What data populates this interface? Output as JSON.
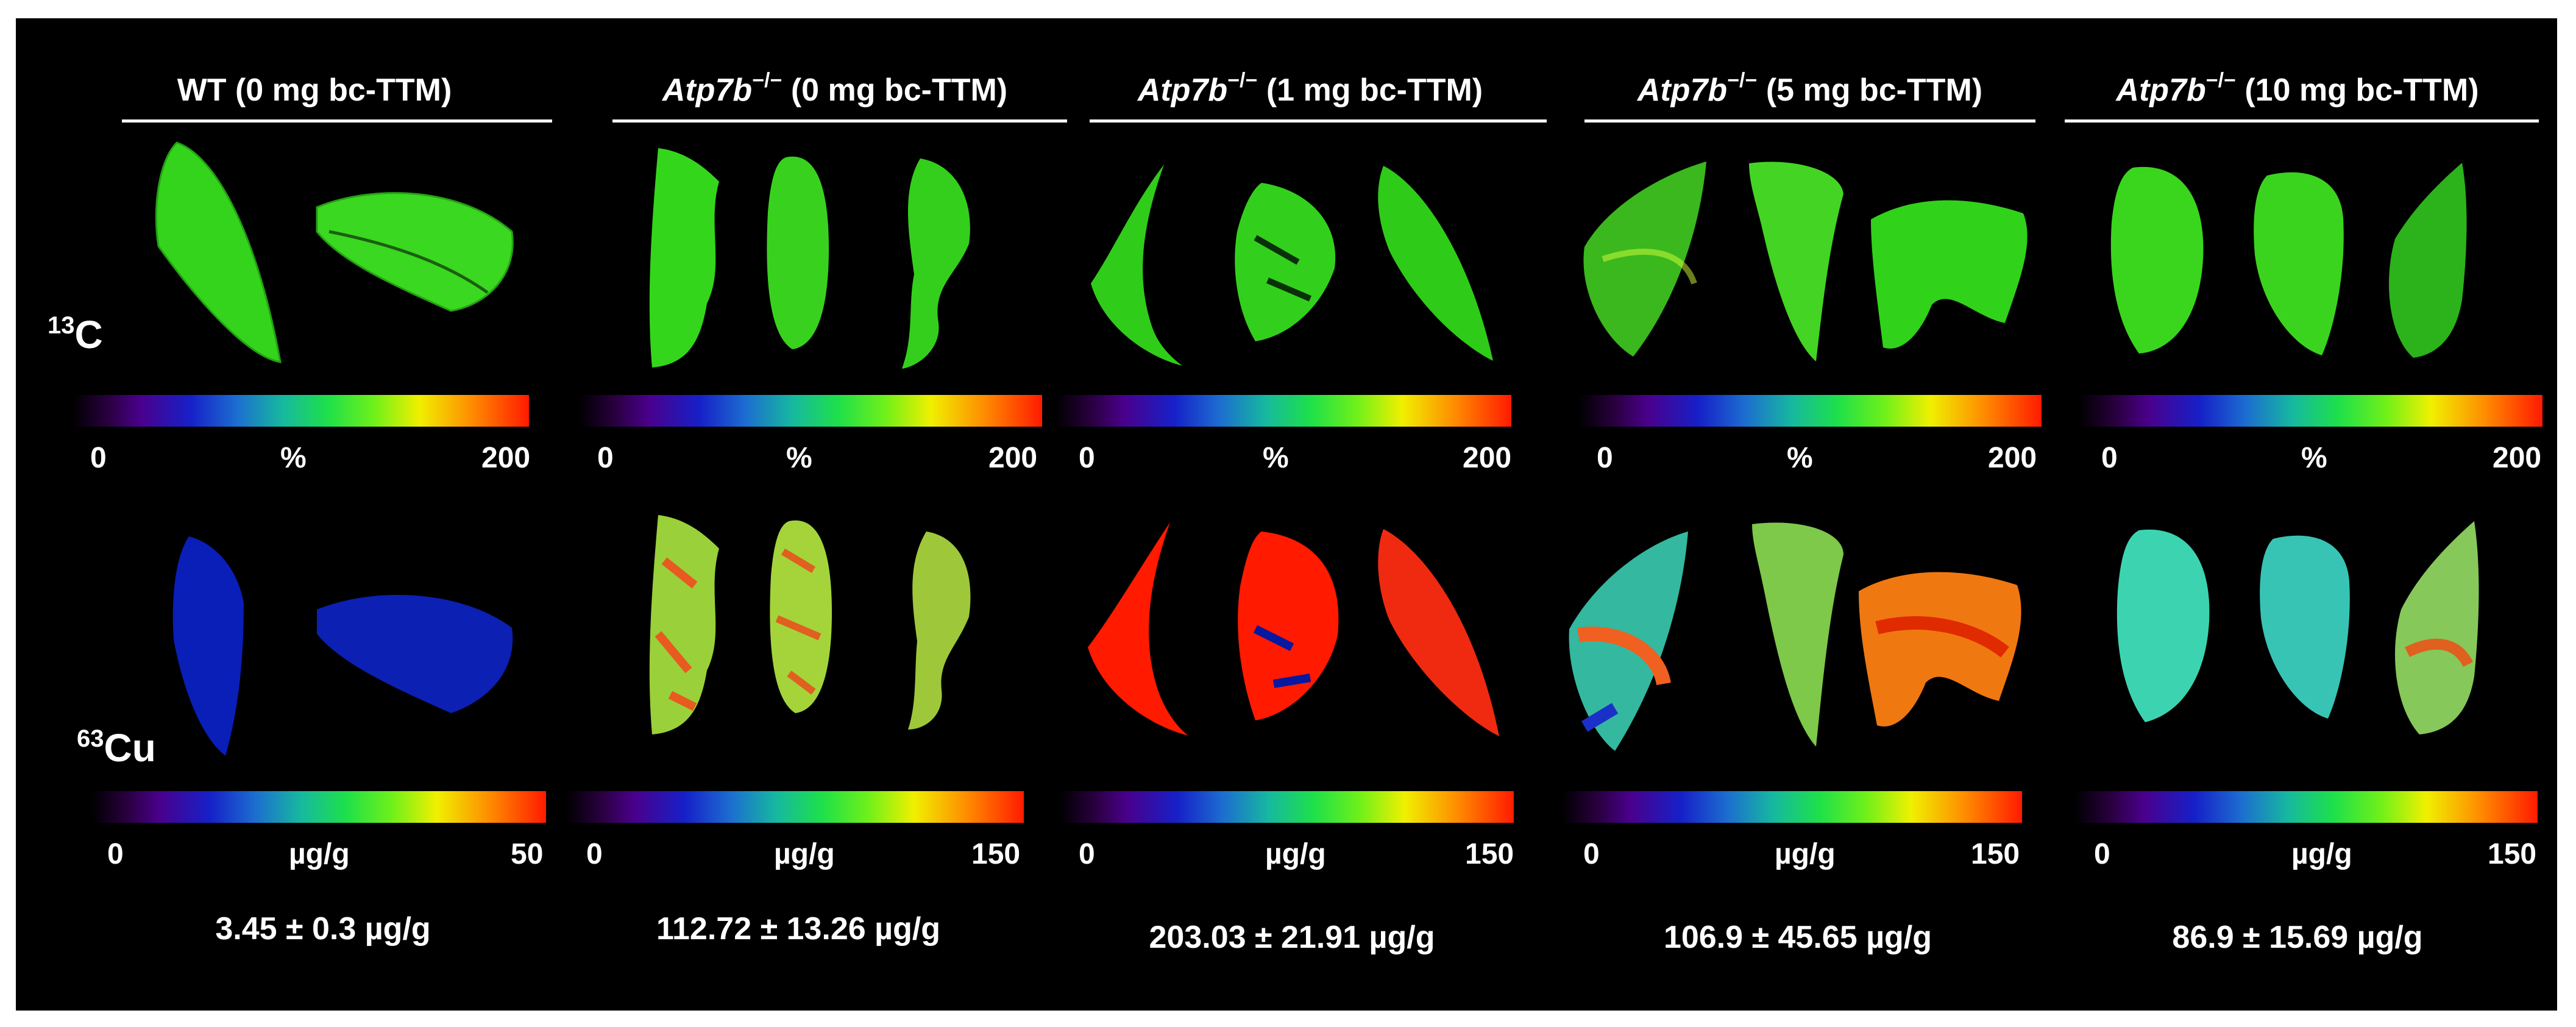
{
  "columns": [
    {
      "title_pre": "WT",
      "title_sup": "",
      "title_post": " (0 mg bc-TTM)",
      "c13_scale": {
        "min": "0",
        "unit": "%",
        "max": "200"
      },
      "cu_scale": {
        "min": "0",
        "unit": "µg/g",
        "max": "50"
      },
      "cu_value": "3.45 ± 0.3 µg/g"
    },
    {
      "title_pre": "Atp7b",
      "title_sup": "−/−",
      "title_post": " (0 mg bc-TTM)",
      "c13_scale": {
        "min": "0",
        "unit": "%",
        "max": "200"
      },
      "cu_scale": {
        "min": "0",
        "unit": "µg/g",
        "max": "150"
      },
      "cu_value": "112.72 ± 13.26 µg/g"
    },
    {
      "title_pre": "Atp7b",
      "title_sup": "−/−",
      "title_post": " (1 mg bc-TTM)",
      "c13_scale": {
        "min": "0",
        "unit": "%",
        "max": "200"
      },
      "cu_scale": {
        "min": "0",
        "unit": "µg/g",
        "max": "150"
      },
      "cu_value": "203.03 ± 21.91 µg/g"
    },
    {
      "title_pre": "Atp7b",
      "title_sup": "−/−",
      "title_post": " (5 mg bc-TTM)",
      "c13_scale": {
        "min": "0",
        "unit": "%",
        "max": "200"
      },
      "cu_scale": {
        "min": "0",
        "unit": "µg/g",
        "max": "150"
      },
      "cu_value": "106.9 ± 45.65 µg/g"
    },
    {
      "title_pre": "Atp7b",
      "title_sup": "−/−",
      "title_post": " (10 mg bc-TTM)",
      "c13_scale": {
        "min": "0",
        "unit": "%",
        "max": "200"
      },
      "cu_scale": {
        "min": "0",
        "unit": "µg/g",
        "max": "150"
      },
      "cu_value": "86.9 ± 15.69 µg/g"
    }
  ],
  "row_labels": {
    "c13": {
      "sup": "13",
      "symbol": "C"
    },
    "cu": {
      "sup": "63",
      "symbol": "Cu"
    }
  }
}
